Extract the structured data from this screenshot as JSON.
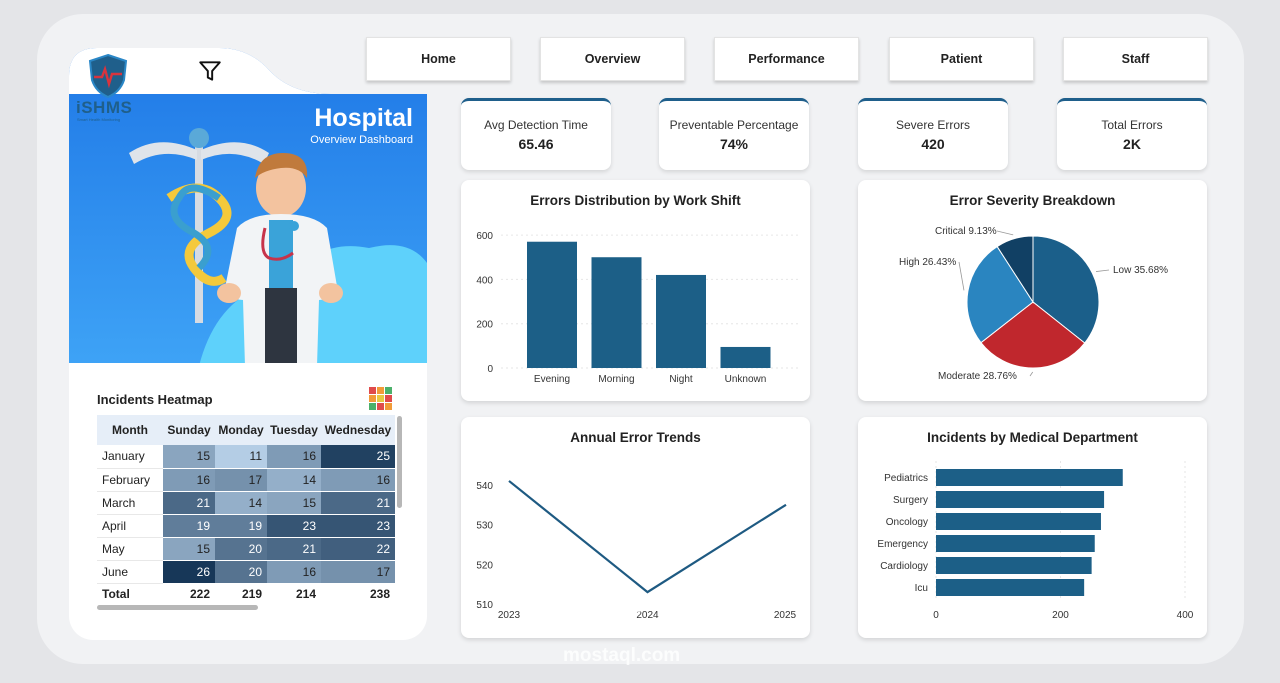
{
  "nav": [
    {
      "label": "Home"
    },
    {
      "label": "Overview"
    },
    {
      "label": "Performance"
    },
    {
      "label": "Patient"
    },
    {
      "label": "Staff"
    }
  ],
  "brand": {
    "logo_text": "iSHMS",
    "logo_tagline": "Smart Health Monitoring"
  },
  "hero": {
    "title": "Hospital",
    "subtitle": "Overview Dashboard"
  },
  "icons": {
    "filter": "filter-icon",
    "logo": "shield-logo-icon",
    "heatmap": "grid-heatmap-icon"
  },
  "colors": {
    "accent": "#1f5f8b",
    "bar": "#1c5f87",
    "moderate": "#c0272d",
    "high": "#2a85c0",
    "critical": "#114064",
    "low": "#1b5f8a",
    "hero_bg": "#2a8df0"
  },
  "kpis": [
    {
      "label": "Avg Detection Time",
      "value": "65.46"
    },
    {
      "label": "Preventable Percentage",
      "value": "74%"
    },
    {
      "label": "Severe Errors",
      "value": "420"
    },
    {
      "label": "Total Errors",
      "value": "2K"
    }
  ],
  "heatmap": {
    "title": "Incidents Heatmap",
    "columns": [
      "Month",
      "Sunday",
      "Monday",
      "Tuesday",
      "Wednesday"
    ],
    "rows": [
      {
        "month": "January",
        "values": [
          15,
          11,
          16,
          25
        ]
      },
      {
        "month": "February",
        "values": [
          16,
          17,
          14,
          16
        ]
      },
      {
        "month": "March",
        "values": [
          21,
          14,
          15,
          21
        ]
      },
      {
        "month": "April",
        "values": [
          19,
          19,
          23,
          23
        ]
      },
      {
        "month": "May",
        "values": [
          15,
          20,
          21,
          22
        ]
      },
      {
        "month": "June",
        "values": [
          26,
          20,
          16,
          17
        ]
      }
    ],
    "total_label": "Total",
    "totals": [
      222,
      219,
      214,
      238
    ]
  },
  "chart_data": [
    {
      "type": "bar",
      "title": "Errors Distribution by Work Shift",
      "categories": [
        "Evening",
        "Morning",
        "Night",
        "Unknown"
      ],
      "values": [
        570,
        500,
        420,
        95
      ],
      "yticks": [
        0,
        200,
        400,
        600
      ],
      "ylim": [
        0,
        650
      ],
      "grid": true
    },
    {
      "type": "pie",
      "title": "Error Severity Breakdown",
      "slices": [
        {
          "label": "Low 35.68%",
          "value": 35.68
        },
        {
          "label": "Moderate 28.76%",
          "value": 28.76
        },
        {
          "label": "High 26.43%",
          "value": 26.43
        },
        {
          "label": "Critical 9.13%",
          "value": 9.13
        }
      ]
    },
    {
      "type": "line",
      "title": "Annual Error Trends",
      "x": [
        "2023",
        "2024",
        "2025"
      ],
      "values": [
        541,
        513,
        535
      ],
      "yticks": [
        510,
        520,
        530,
        540
      ],
      "ylim": [
        510,
        543
      ]
    },
    {
      "type": "bar",
      "orientation": "horizontal",
      "title": "Incidents by Medical Department",
      "categories": [
        "Pediatrics",
        "Surgery",
        "Oncology",
        "Emergency",
        "Cardiology",
        "Icu"
      ],
      "values": [
        300,
        270,
        265,
        255,
        250,
        238
      ],
      "xticks": [
        0,
        200,
        400
      ],
      "xlim": [
        0,
        400
      ],
      "grid": true
    }
  ]
}
